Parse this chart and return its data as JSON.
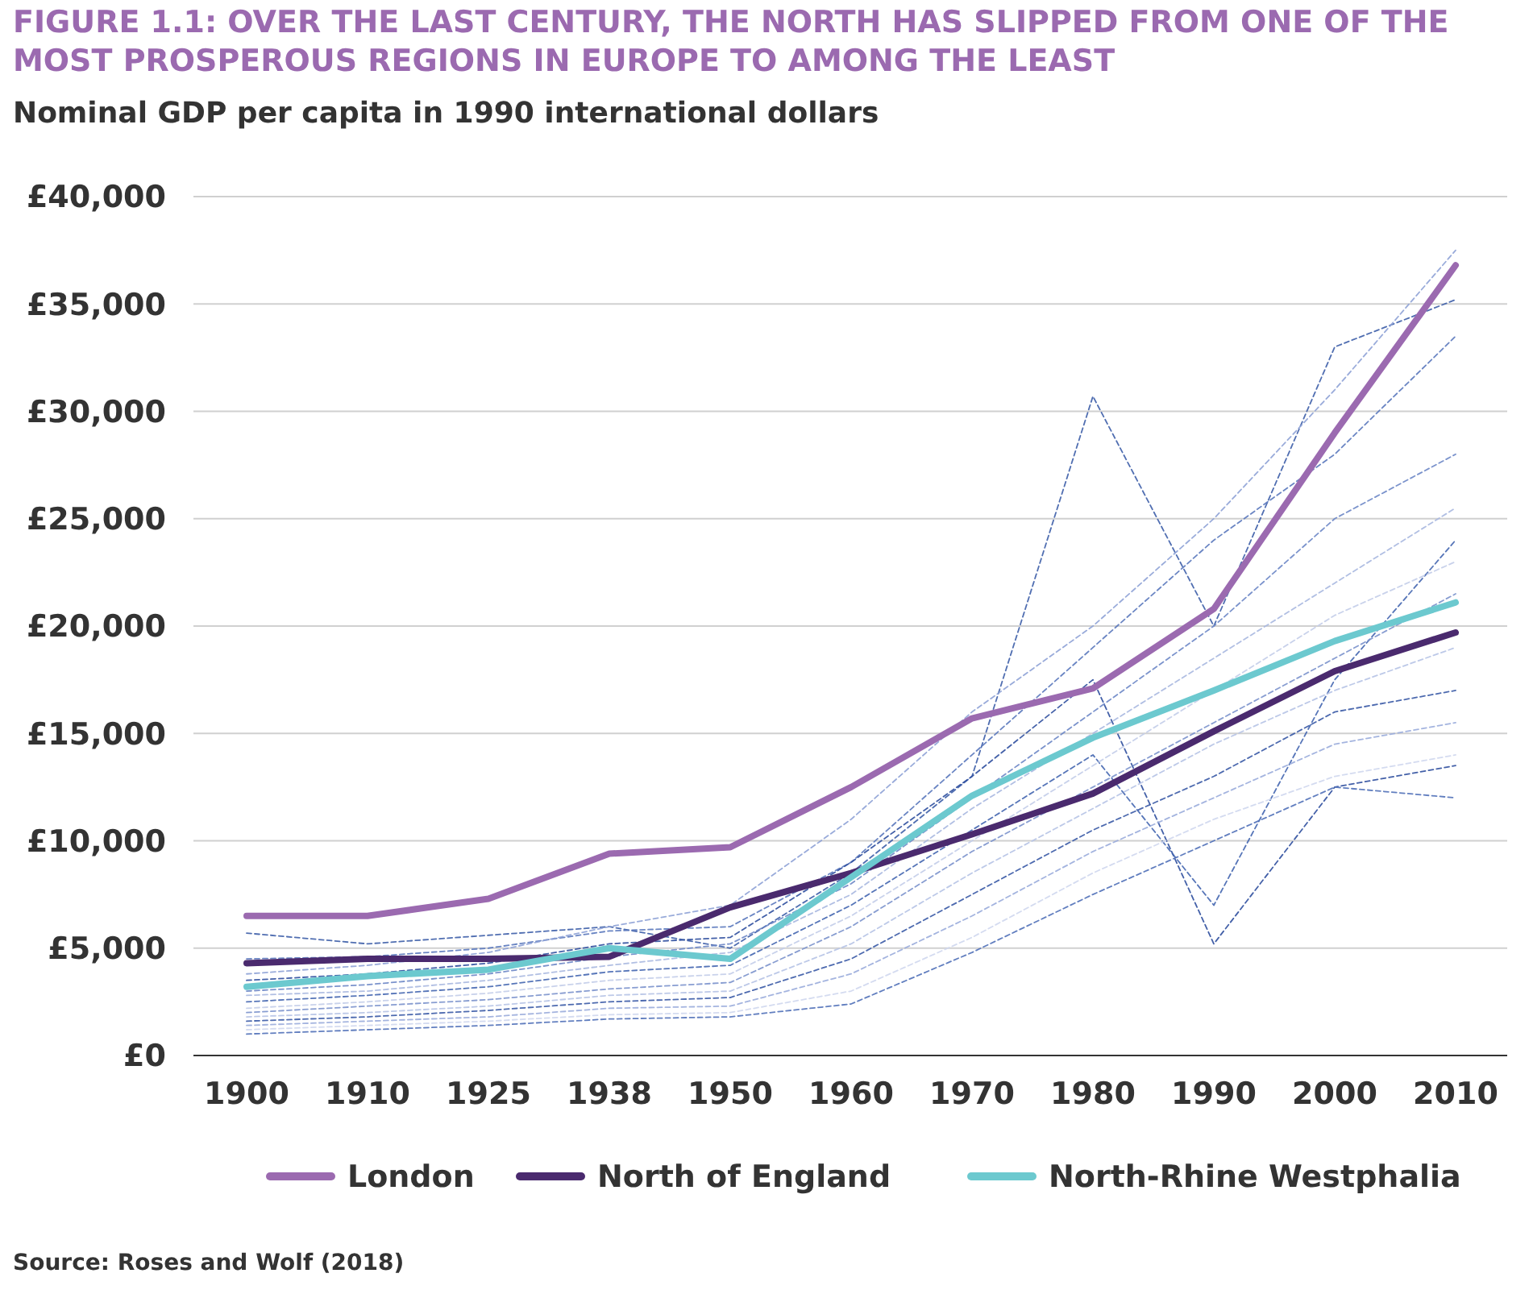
{
  "chart_data": {
    "type": "line",
    "title": "FIGURE 1.1: OVER THE LAST CENTURY, THE NORTH HAS SLIPPED FROM ONE OF THE MOST PROSPEROUS REGIONS IN EUROPE TO AMONG THE LEAST",
    "subtitle": "Nominal GDP per capita in 1990 international dollars",
    "categories": [
      "1900",
      "1910",
      "1925",
      "1938",
      "1950",
      "1960",
      "1970",
      "1980",
      "1990",
      "2000",
      "2010"
    ],
    "ylim": [
      0,
      40000
    ],
    "yticks": [
      {
        "value": 0,
        "label": "£0"
      },
      {
        "value": 5000,
        "label": "£5,000"
      },
      {
        "value": 10000,
        "label": "£10,000"
      },
      {
        "value": 15000,
        "label": "£15,000"
      },
      {
        "value": 20000,
        "label": "£20,000"
      },
      {
        "value": 25000,
        "label": "£25,000"
      },
      {
        "value": 30000,
        "label": "£30,000"
      },
      {
        "value": 35000,
        "label": "£35,000"
      },
      {
        "value": 40000,
        "label": "£40,000"
      }
    ],
    "grid": "y",
    "legend": "bottom",
    "marker": "none",
    "series": [
      {
        "color": "#3d5ea8",
        "line_style": "dashed",
        "values": [
          5700,
          5200,
          5600,
          6000,
          5000,
          8500,
          13000,
          30700,
          20000,
          33000,
          35200
        ]
      },
      {
        "color": "#5a78bd",
        "line_style": "dashed",
        "values": [
          4500,
          4600,
          5000,
          5800,
          6000,
          9000,
          14000,
          19000,
          24000,
          28000,
          33500
        ]
      },
      {
        "color": "#8ea2d6",
        "line_style": "dashed",
        "values": [
          3800,
          4200,
          4800,
          6000,
          7000,
          11000,
          16000,
          20000,
          25000,
          31000,
          37500
        ]
      },
      {
        "color": "#2f4f9e",
        "line_style": "dashed",
        "values": [
          3500,
          3800,
          4300,
          5200,
          5500,
          9000,
          13000,
          17500,
          5200,
          12500,
          13500
        ]
      },
      {
        "color": "#6d87c7",
        "line_style": "dashed",
        "values": [
          3000,
          3300,
          3800,
          4600,
          5200,
          8000,
          12000,
          16000,
          20000,
          25000,
          28000
        ]
      },
      {
        "color": "#a9b8e0",
        "line_style": "dashed",
        "values": [
          2800,
          3000,
          3500,
          4200,
          4800,
          7500,
          11500,
          15000,
          18500,
          22000,
          25500
        ]
      },
      {
        "color": "#4466b0",
        "line_style": "dashed",
        "values": [
          2500,
          2800,
          3200,
          3900,
          4200,
          7000,
          10500,
          14000,
          7000,
          17500,
          24000
        ]
      },
      {
        "color": "#c3cde9",
        "line_style": "dashed",
        "values": [
          2200,
          2500,
          2900,
          3500,
          3800,
          6500,
          10000,
          13500,
          17000,
          20500,
          23000
        ]
      },
      {
        "color": "#7b92cc",
        "line_style": "dashed",
        "values": [
          2000,
          2300,
          2600,
          3100,
          3400,
          6000,
          9500,
          12500,
          15500,
          18500,
          21500
        ]
      },
      {
        "color": "#b6c3e5",
        "line_style": "dashed",
        "values": [
          1800,
          2000,
          2300,
          2800,
          3000,
          5200,
          8500,
          11500,
          14500,
          17000,
          19000
        ]
      },
      {
        "color": "#3a5aa6",
        "line_style": "dashed",
        "values": [
          1600,
          1800,
          2100,
          2500,
          2700,
          4500,
          7500,
          10500,
          13000,
          16000,
          17000
        ]
      },
      {
        "color": "#9aacdb",
        "line_style": "dashed",
        "values": [
          1400,
          1600,
          1800,
          2200,
          2300,
          3800,
          6500,
          9500,
          12000,
          14500,
          15500
        ]
      },
      {
        "color": "#cfd7ee",
        "line_style": "dashed",
        "values": [
          1200,
          1400,
          1600,
          1900,
          2000,
          3000,
          5500,
          8500,
          11000,
          13000,
          14000
        ]
      },
      {
        "color": "#5070b8",
        "line_style": "dashed",
        "values": [
          1000,
          1200,
          1400,
          1700,
          1800,
          2400,
          4800,
          7500,
          10000,
          12500,
          12000
        ]
      },
      {
        "name": "London",
        "color": "#9b6ab0",
        "line_style": "solid",
        "values": [
          6500,
          6500,
          7300,
          9400,
          9700,
          12500,
          15700,
          17100,
          20800,
          29000,
          36800
        ]
      },
      {
        "name": "North of England",
        "color": "#4a2a6e",
        "line_style": "solid",
        "values": [
          4300,
          4500,
          4500,
          4600,
          6900,
          8500,
          10300,
          12200,
          15100,
          17900,
          19700
        ]
      },
      {
        "name": "North-Rhine Westphalia",
        "color": "#6cc9cf",
        "line_style": "solid",
        "values": [
          3200,
          3700,
          4000,
          5000,
          4500,
          8300,
          12100,
          14800,
          17000,
          19300,
          21100
        ]
      }
    ],
    "annotations": [
      "Source: Roses and Wolf (2018)"
    ]
  }
}
